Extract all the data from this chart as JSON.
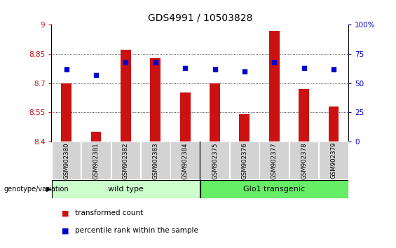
{
  "title": "GDS4991 / 10503828",
  "samples": [
    "GSM902380",
    "GSM902381",
    "GSM902382",
    "GSM902383",
    "GSM902384",
    "GSM902375",
    "GSM902376",
    "GSM902377",
    "GSM902378",
    "GSM902379"
  ],
  "red_values": [
    8.7,
    8.45,
    8.87,
    8.83,
    8.65,
    8.7,
    8.54,
    8.97,
    8.67,
    8.58
  ],
  "blue_values": [
    62,
    57,
    68,
    68,
    63,
    62,
    60,
    68,
    63,
    62
  ],
  "ylim_left": [
    8.4,
    9.0
  ],
  "ylim_right": [
    0,
    100
  ],
  "yticks_left": [
    8.4,
    8.55,
    8.7,
    8.85,
    9.0
  ],
  "yticks_right": [
    0,
    25,
    50,
    75,
    100
  ],
  "ytick_labels_left": [
    "8.4",
    "8.55",
    "8.7",
    "8.85",
    "9"
  ],
  "ytick_labels_right": [
    "0",
    "25",
    "50",
    "75",
    "100%"
  ],
  "wild_type_count": 5,
  "glo1_count": 5,
  "wild_type_label": "wild type",
  "glo1_label": "Glo1 transgenic",
  "genotype_label": "genotype/variation",
  "legend_red": "transformed count",
  "legend_blue": "percentile rank within the sample",
  "bar_color": "#cc1111",
  "dot_color": "#0000cc",
  "wild_type_color": "#ccffcc",
  "glo1_color": "#66ee66",
  "tick_bg_color": "#d3d3d3",
  "bar_bottom": 8.4,
  "grid_vals": [
    8.55,
    8.7,
    8.85
  ]
}
